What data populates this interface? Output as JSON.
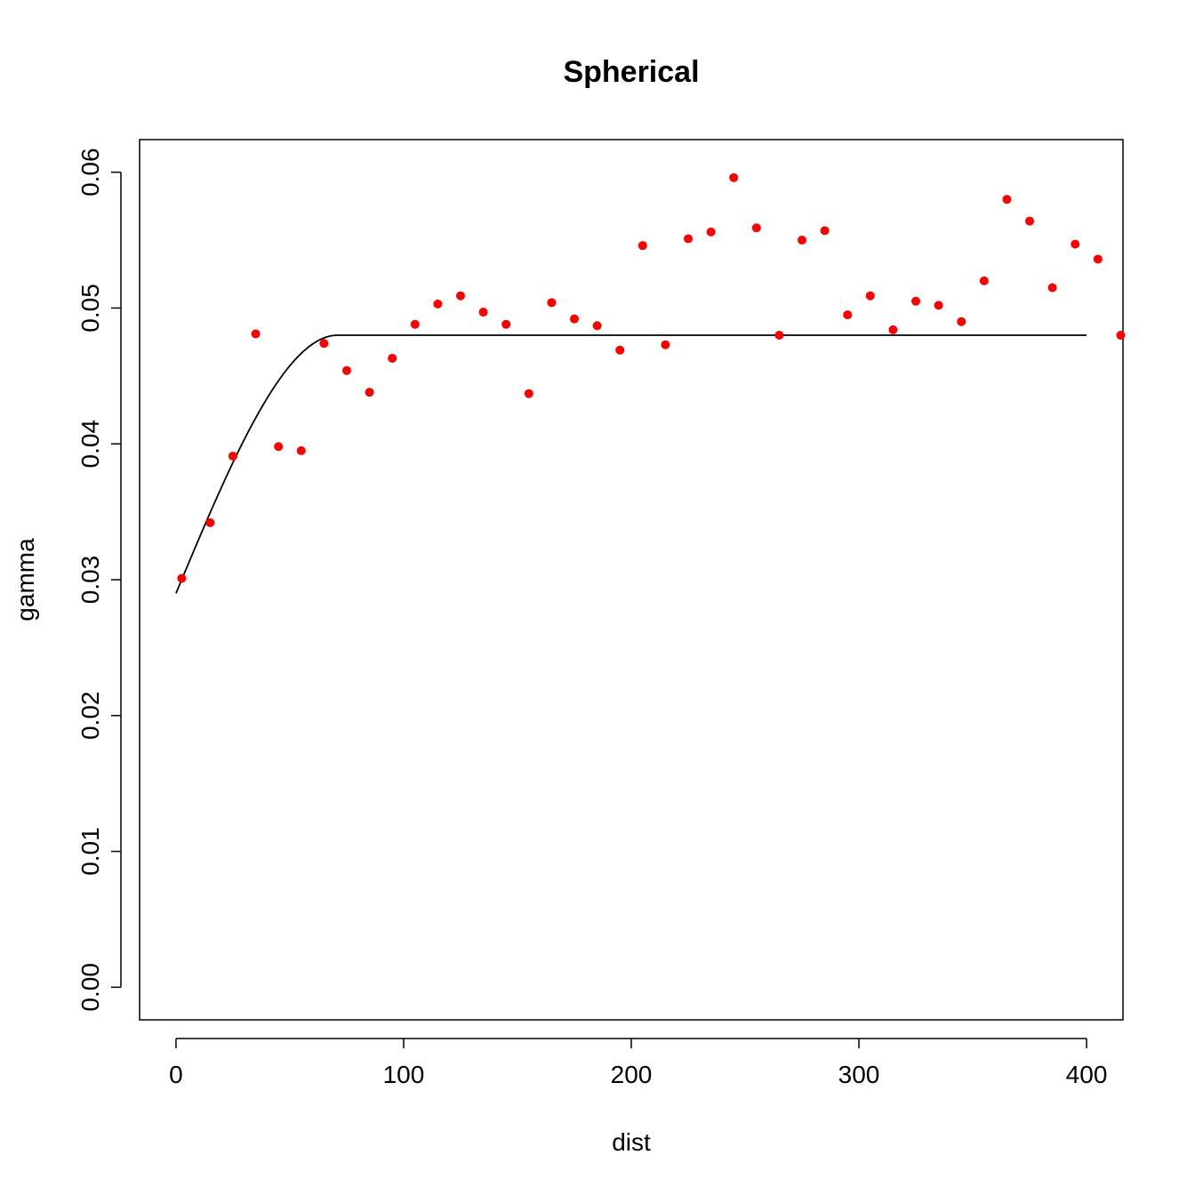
{
  "chart_data": {
    "type": "scatter",
    "title": "Spherical",
    "xlabel": "dist",
    "ylabel": "gamma",
    "xlim": [
      -16,
      416
    ],
    "ylim": [
      -0.0024,
      0.0624
    ],
    "x_ticks": [
      0,
      100,
      200,
      300,
      400
    ],
    "x_tick_labels": [
      "0",
      "100",
      "200",
      "300",
      "400"
    ],
    "y_ticks": [
      0,
      0.01,
      0.02,
      0.03,
      0.04,
      0.05,
      0.06
    ],
    "y_tick_labels": [
      "0.00",
      "0.01",
      "0.02",
      "0.03",
      "0.04",
      "0.05",
      "0.06"
    ],
    "grid": false,
    "colors": {
      "points": "#ff0000",
      "line": "#000000"
    },
    "series": [
      {
        "kind": "points",
        "x": [
          2.5,
          15,
          25,
          35,
          45,
          55,
          65,
          75,
          85,
          95,
          105,
          115,
          125,
          135,
          145,
          155,
          165,
          175,
          185,
          195,
          205,
          215,
          225,
          235,
          245,
          255,
          265,
          275,
          285,
          295,
          305,
          315,
          325,
          335,
          345,
          355,
          365,
          375,
          385,
          395,
          405,
          415
        ],
        "y": [
          0.0301,
          0.0342,
          0.0391,
          0.0481,
          0.0398,
          0.0395,
          0.0474,
          0.0454,
          0.0438,
          0.0463,
          0.0488,
          0.0503,
          0.0509,
          0.0497,
          0.0488,
          0.0437,
          0.0504,
          0.0492,
          0.0487,
          0.0469,
          0.0546,
          0.0473,
          0.0551,
          0.0556,
          0.0596,
          0.0559,
          0.048,
          0.055,
          0.0557,
          0.0495,
          0.0509,
          0.0484,
          0.0505,
          0.0502,
          0.049,
          0.052,
          0.058,
          0.0564,
          0.0515,
          0.0547,
          0.0536,
          0.048
        ]
      },
      {
        "kind": "line",
        "model": "spherical",
        "nugget": 0.029,
        "sill": 0.048,
        "range": 71,
        "x_start": 0,
        "x_end": 400
      }
    ]
  }
}
